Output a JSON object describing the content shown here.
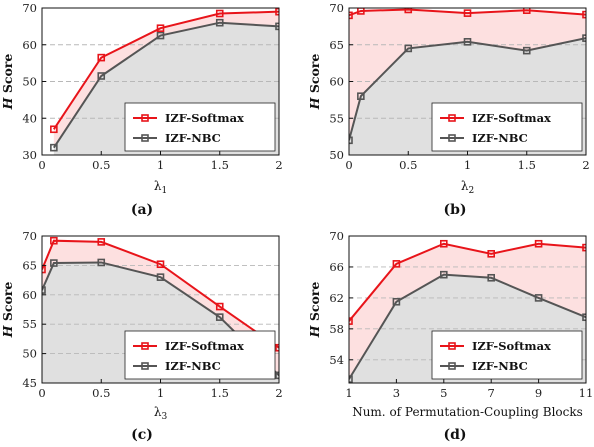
{
  "colors": {
    "softmax": "#e8141a",
    "nbc": "#555555",
    "fill_gap": "#fde0e0",
    "fill_nbc": "#e0e0e0",
    "grid": "#b8b8b8"
  },
  "chart_data": [
    {
      "id": "a",
      "type": "line",
      "caption": "(a)",
      "ylabel_italic": "H",
      "ylabel_rest": " Score",
      "xlabel_main": "λ",
      "xlabel_sub": "1",
      "xticks": [
        "0",
        "0.5",
        "1",
        "1.5",
        "2"
      ],
      "xtick_values": [
        0,
        0.5,
        1,
        1.5,
        2
      ],
      "xlim": [
        0,
        2
      ],
      "yticks": [
        30,
        40,
        50,
        60,
        70
      ],
      "ylim": [
        30,
        70
      ],
      "x": [
        0.1,
        0.5,
        1,
        1.5,
        2
      ],
      "series": [
        {
          "name": "IZF-Softmax",
          "key": "softmax",
          "values": [
            37,
            56.5,
            64.5,
            68.5,
            69
          ]
        },
        {
          "name": "IZF-NBC",
          "key": "nbc",
          "values": [
            32,
            51.5,
            62.5,
            66,
            65
          ]
        }
      ],
      "legend": "bottom-right",
      "grid": true
    },
    {
      "id": "b",
      "type": "line",
      "caption": "(b)",
      "ylabel_italic": "H",
      "ylabel_rest": " Score",
      "xlabel_main": "λ",
      "xlabel_sub": "2",
      "xticks": [
        "0",
        "0.5",
        "1",
        "1.5",
        "2"
      ],
      "xtick_values": [
        0,
        0.5,
        1,
        1.5,
        2
      ],
      "xlim": [
        0,
        2
      ],
      "yticks": [
        50,
        55,
        60,
        65,
        70
      ],
      "ylim": [
        50,
        70
      ],
      "x": [
        0,
        0.1,
        0.5,
        1,
        1.5,
        2
      ],
      "series": [
        {
          "name": "IZF-Softmax",
          "key": "softmax",
          "values": [
            69,
            69.6,
            69.8,
            69.3,
            69.7,
            69.1
          ]
        },
        {
          "name": "IZF-NBC",
          "key": "nbc",
          "values": [
            52,
            58,
            64.5,
            65.4,
            64.2,
            65.9
          ]
        }
      ],
      "legend": "bottom-right",
      "grid": true
    },
    {
      "id": "c",
      "type": "line",
      "caption": "(c)",
      "ylabel_italic": "H",
      "ylabel_rest": " Score",
      "xlabel_main": "λ",
      "xlabel_sub": "3",
      "xticks": [
        "0",
        "0.5",
        "1",
        "1.5",
        "2"
      ],
      "xtick_values": [
        0,
        0.5,
        1,
        1.5,
        2
      ],
      "xlim": [
        0,
        2
      ],
      "yticks": [
        45,
        50,
        55,
        60,
        65,
        70
      ],
      "ylim": [
        45,
        70
      ],
      "x": [
        0,
        0.1,
        0.5,
        1,
        1.5,
        2
      ],
      "series": [
        {
          "name": "IZF-Softmax",
          "key": "softmax",
          "values": [
            64.3,
            69.2,
            69,
            65.2,
            58,
            51
          ]
        },
        {
          "name": "IZF-NBC",
          "key": "nbc",
          "values": [
            60.8,
            65.4,
            65.5,
            63,
            56.2,
            46.3
          ]
        }
      ],
      "legend": "bottom-right",
      "grid": true
    },
    {
      "id": "d",
      "type": "line",
      "caption": "(d)",
      "ylabel_italic": "H",
      "ylabel_rest": " Score",
      "xlabel_main": "Num. of Permutation-Coupling Blocks",
      "xlabel_sub": "",
      "xticks": [
        "1",
        "3",
        "5",
        "7",
        "9",
        "11"
      ],
      "xtick_values": [
        1,
        3,
        5,
        7,
        9,
        11
      ],
      "xlim": [
        1,
        11
      ],
      "yticks": [
        54,
        58,
        62,
        66,
        70
      ],
      "ylim": [
        51,
        70
      ],
      "x": [
        1,
        3,
        5,
        7,
        9,
        11
      ],
      "series": [
        {
          "name": "IZF-Softmax",
          "key": "softmax",
          "values": [
            59,
            66.4,
            69,
            67.7,
            69,
            68.5
          ]
        },
        {
          "name": "IZF-NBC",
          "key": "nbc",
          "values": [
            51.5,
            61.5,
            65,
            64.6,
            62,
            59.5
          ]
        }
      ],
      "legend": "bottom-right",
      "grid": true
    }
  ]
}
